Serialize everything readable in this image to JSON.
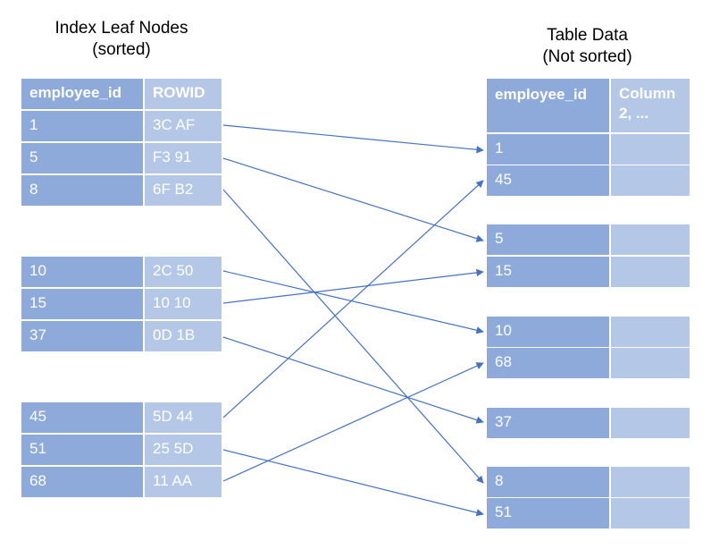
{
  "index_title_line1": "Index Leaf Nodes",
  "index_title_line2": "(sorted)",
  "table_title_line1": "Table Data",
  "table_title_line2": "(Not sorted)",
  "index_headers": {
    "id": "employee_id",
    "rowid": "ROWID"
  },
  "table_headers": {
    "id": "employee_id",
    "col2": "Column 2, ..."
  },
  "index_groups": [
    [
      {
        "id": "1",
        "rowid": "3C AF"
      },
      {
        "id": "5",
        "rowid": "F3 91"
      },
      {
        "id": "8",
        "rowid": "6F B2"
      }
    ],
    [
      {
        "id": "10",
        "rowid": "2C 50"
      },
      {
        "id": "15",
        "rowid": "10 10"
      },
      {
        "id": "37",
        "rowid": "0D 1B"
      }
    ],
    [
      {
        "id": "45",
        "rowid": "5D 44"
      },
      {
        "id": "51",
        "rowid": "25 5D"
      },
      {
        "id": "68",
        "rowid": "11 AA"
      }
    ]
  ],
  "table_blocks": [
    [
      "1",
      "45"
    ],
    [
      "5",
      "15"
    ],
    [
      "10",
      "68"
    ],
    [
      "37"
    ],
    [
      "8",
      "51"
    ]
  ],
  "colors": {
    "dark_cell": "#8eaadb",
    "light_cell": "#b4c7e7",
    "arrow": "#4472c4",
    "text": "#ffffff"
  }
}
